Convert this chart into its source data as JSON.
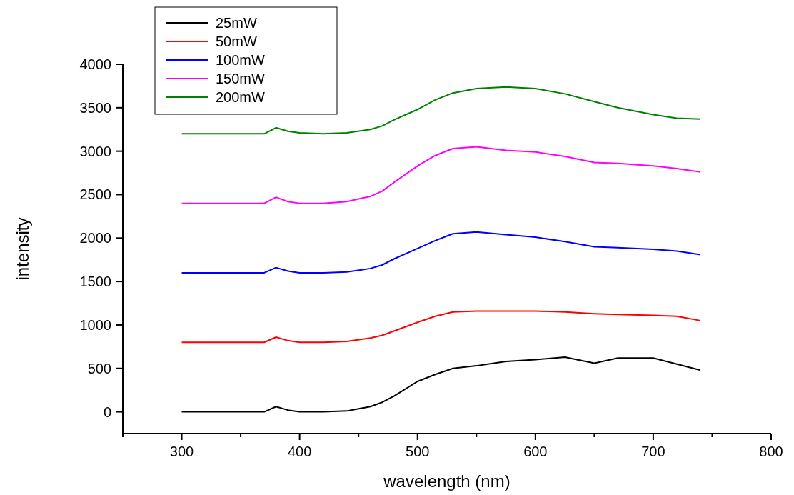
{
  "chart_data": {
    "type": "line",
    "xlabel": "wavelength (nm)",
    "ylabel": "intensity",
    "xlim": [
      250,
      800
    ],
    "xticks": [
      {
        "value": 250,
        "label": null
      },
      300,
      {
        "value": 350,
        "label": null
      },
      400,
      {
        "value": 450,
        "label": null
      },
      500,
      {
        "value": 550,
        "label": null
      },
      600,
      {
        "value": 650,
        "label": null
      },
      700,
      {
        "value": 750,
        "label": null
      },
      800
    ],
    "ylim": [
      -250,
      4000
    ],
    "yticks": [
      0,
      500,
      1000,
      1500,
      2000,
      2500,
      3000,
      3500,
      4000
    ],
    "grid": false,
    "legend": "top left",
    "marker": "none",
    "line_style": "solid",
    "x": [
      300,
      340,
      370,
      380,
      390,
      400,
      420,
      440,
      460,
      470,
      480,
      500,
      515,
      530,
      550,
      575,
      600,
      625,
      650,
      670,
      700,
      720,
      740
    ],
    "series": [
      {
        "name": "25mW",
        "color": "#000000",
        "values": [
          0,
          0,
          0,
          60,
          20,
          0,
          0,
          10,
          60,
          110,
          180,
          350,
          430,
          500,
          530,
          580,
          600,
          630,
          560,
          620,
          620,
          550,
          480
        ]
      },
      {
        "name": "50mW",
        "color": "#ff0000",
        "values": [
          800,
          800,
          800,
          860,
          820,
          800,
          800,
          810,
          850,
          880,
          930,
          1030,
          1100,
          1150,
          1160,
          1160,
          1160,
          1150,
          1130,
          1120,
          1110,
          1100,
          1050
        ]
      },
      {
        "name": "100mW",
        "color": "#0000ff",
        "values": [
          1600,
          1600,
          1600,
          1660,
          1620,
          1600,
          1600,
          1610,
          1650,
          1690,
          1760,
          1880,
          1970,
          2050,
          2070,
          2040,
          2010,
          1960,
          1900,
          1890,
          1870,
          1850,
          1810
        ]
      },
      {
        "name": "150mW",
        "color": "#ff00ff",
        "values": [
          2400,
          2400,
          2400,
          2470,
          2420,
          2400,
          2400,
          2420,
          2480,
          2540,
          2640,
          2830,
          2950,
          3030,
          3050,
          3010,
          2990,
          2940,
          2870,
          2860,
          2830,
          2800,
          2760
        ]
      },
      {
        "name": "200mW",
        "color": "#008000",
        "values": [
          3200,
          3200,
          3200,
          3270,
          3230,
          3210,
          3200,
          3210,
          3250,
          3290,
          3360,
          3480,
          3590,
          3670,
          3720,
          3740,
          3720,
          3660,
          3570,
          3500,
          3420,
          3380,
          3370
        ]
      }
    ]
  }
}
